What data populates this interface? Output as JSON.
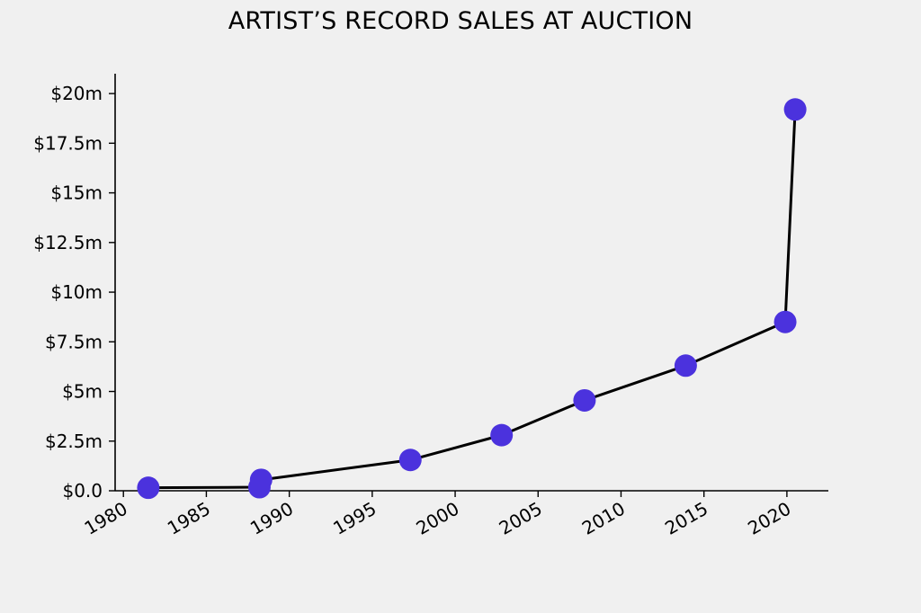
{
  "chart_data": {
    "type": "line",
    "title": "ARTIST’S RECORD SALES AT AUCTION",
    "xlabel": "",
    "ylabel": "",
    "xlim": [
      1979.5,
      2022.5
    ],
    "ylim": [
      0,
      21
    ],
    "x_ticks": [
      1980,
      1985,
      1990,
      1995,
      2000,
      2005,
      2010,
      2015,
      2020
    ],
    "x_tick_labels": [
      "1980",
      "1985",
      "1990",
      "1995",
      "2000",
      "2005",
      "2010",
      "2015",
      "2020"
    ],
    "y_ticks": [
      0,
      2.5,
      5,
      7.5,
      10,
      12.5,
      15,
      17.5,
      20
    ],
    "y_tick_labels": [
      "$0.0",
      "$2.5m",
      "$5m",
      "$7.5m",
      "$10m",
      "$12.5m",
      "$15m",
      "$17.5m",
      "$20m"
    ],
    "grid": false,
    "series": [
      {
        "x": [
          1981.5,
          1988.2,
          1988.3,
          1997.3,
          2002.8,
          2007.8,
          2013.9,
          2019.9,
          2020.5
        ],
        "y": [
          0.15,
          0.18,
          0.55,
          1.55,
          2.8,
          4.55,
          6.3,
          8.5,
          19.2
        ],
        "line_color": "#000000",
        "marker_color": "#4b32dd"
      }
    ]
  }
}
